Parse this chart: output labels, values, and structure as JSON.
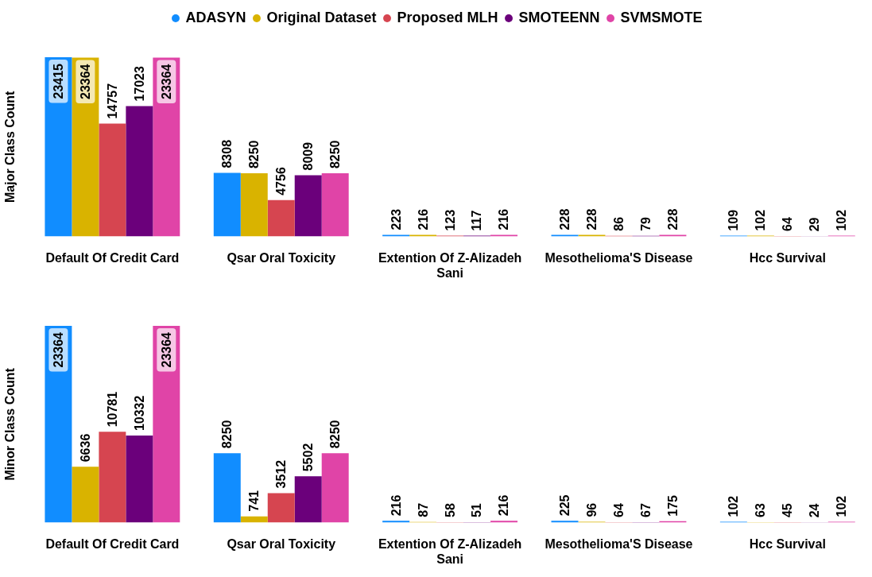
{
  "chart_data": [
    {
      "type": "bar",
      "ylabel": "Major Class Count",
      "legend": "top",
      "data_labels": true,
      "tick_labels": "x",
      "categories": [
        "Default Of Credit Card",
        "Qsar Oral Toxicity",
        "Extention Of Z-Alizadeh Sani",
        "Mesothelioma'S Disease",
        "Hcc Survival"
      ],
      "series": [
        {
          "name": "ADASYN",
          "color": "#118dff",
          "values": [
            23415,
            8308,
            223,
            228,
            109
          ]
        },
        {
          "name": "Original Dataset",
          "color": "#d9b300",
          "values": [
            23364,
            8250,
            216,
            228,
            102
          ]
        },
        {
          "name": "Proposed MLH",
          "color": "#d64550",
          "values": [
            14757,
            4756,
            123,
            86,
            64
          ]
        },
        {
          "name": "SMOTEENN",
          "color": "#6b007b",
          "values": [
            17023,
            8009,
            117,
            79,
            29
          ]
        },
        {
          "name": "SVMSMOTE",
          "color": "#e044a7",
          "values": [
            23364,
            8250,
            216,
            228,
            102
          ]
        }
      ]
    },
    {
      "type": "bar",
      "ylabel": "Minor Class Count",
      "data_labels": true,
      "tick_labels": "x",
      "categories": [
        "Default Of Credit Card",
        "Qsar Oral Toxicity",
        "Extention Of Z-Alizadeh Sani",
        "Mesothelioma'S Disease",
        "Hcc Survival"
      ],
      "series": [
        {
          "color": "#118dff",
          "values": [
            23364,
            8250,
            216,
            225,
            102
          ]
        },
        {
          "color": "#d9b300",
          "values": [
            6636,
            741,
            87,
            96,
            63
          ]
        },
        {
          "color": "#d64550",
          "values": [
            10781,
            3512,
            58,
            64,
            45
          ]
        },
        {
          "color": "#6b007b",
          "values": [
            10332,
            5502,
            51,
            67,
            24
          ]
        },
        {
          "color": "#e044a7",
          "values": [
            23364,
            8250,
            216,
            175,
            102
          ]
        }
      ]
    }
  ]
}
